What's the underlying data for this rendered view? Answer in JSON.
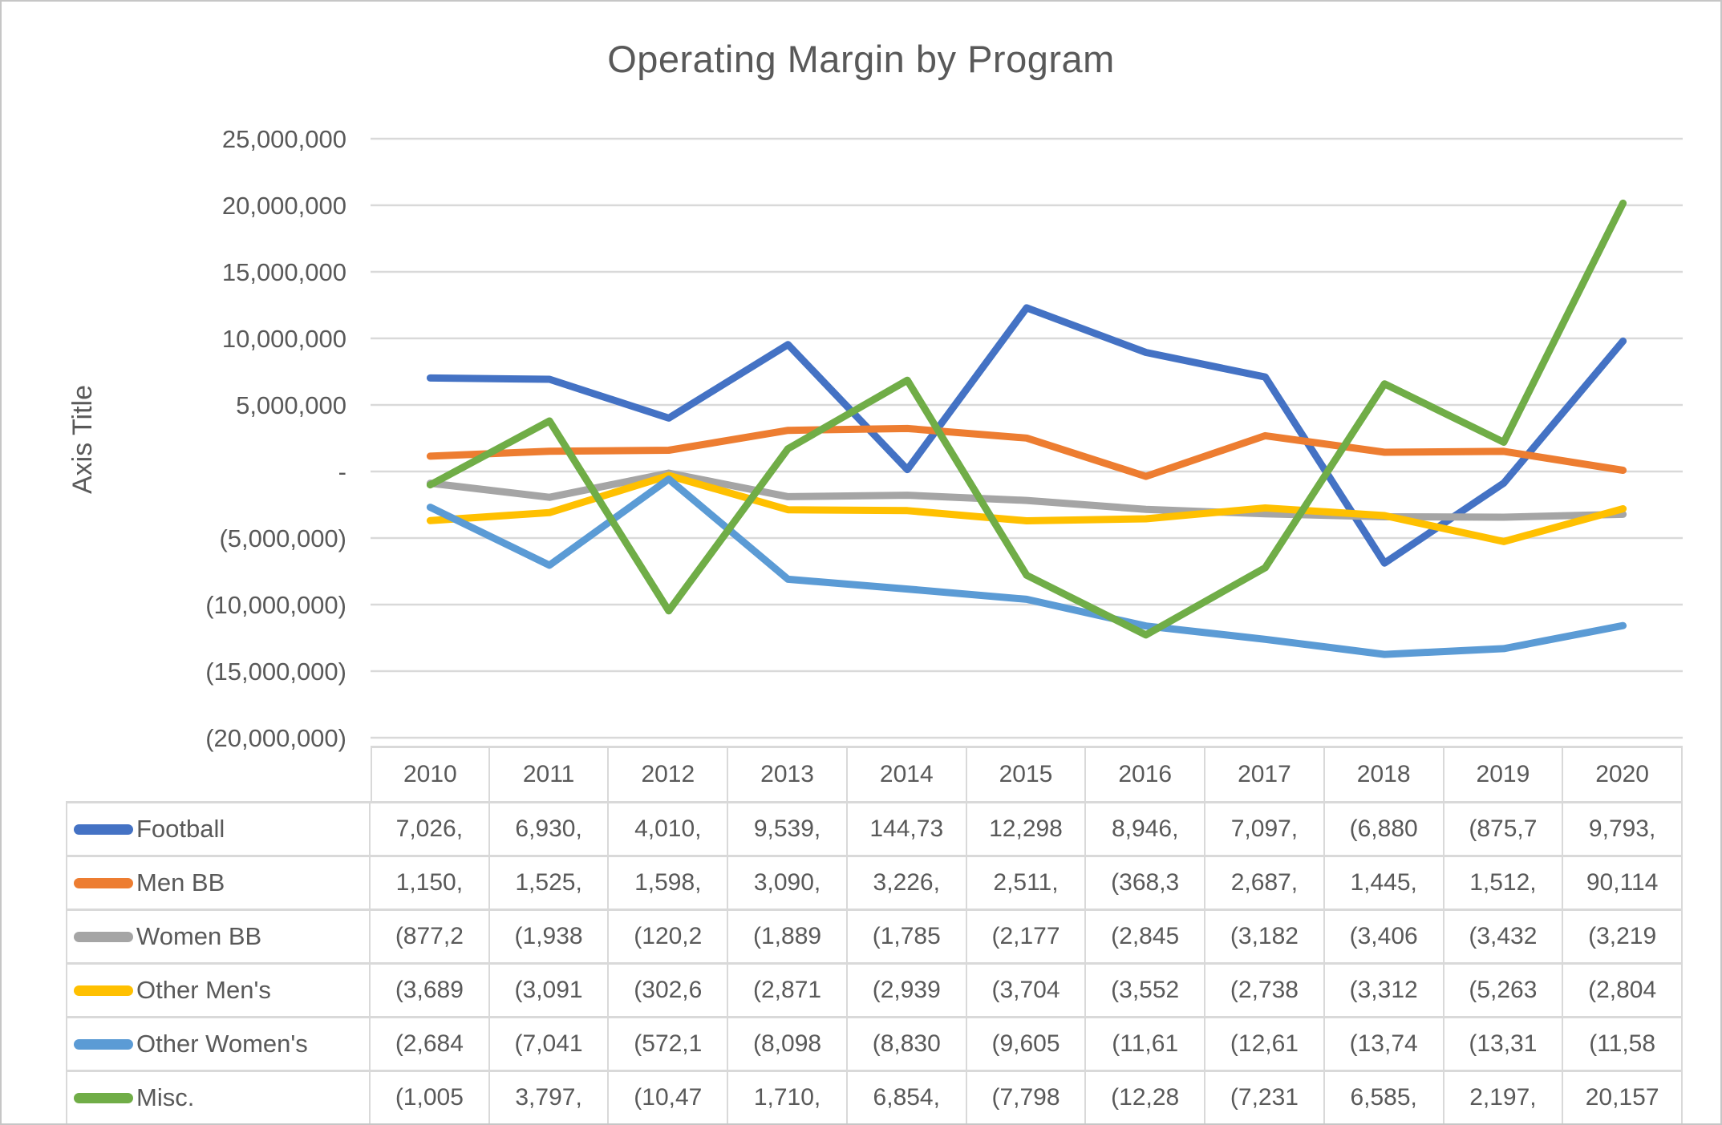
{
  "title": "Operating Margin by Program",
  "colors": {
    "text": "#595959",
    "gridline": "#d9d9d9",
    "table_border": "#d9d9d9",
    "football": "#4472C4",
    "men_bb": "#ED7D31",
    "women_bb": "#A5A5A5",
    "other_mens": "#FFC000",
    "other_womens": "#5B9BD5",
    "misc": "#70AD47"
  },
  "y_axis": {
    "title": "Axis Title",
    "ticks": [
      {
        "value": 25000000,
        "label": "25,000,000"
      },
      {
        "value": 20000000,
        "label": "20,000,000"
      },
      {
        "value": 15000000,
        "label": "15,000,000"
      },
      {
        "value": 10000000,
        "label": "10,000,000"
      },
      {
        "value": 5000000,
        "label": "5,000,000"
      },
      {
        "value": 0,
        "label": "-"
      },
      {
        "value": -5000000,
        "label": "(5,000,000)"
      },
      {
        "value": -10000000,
        "label": "(10,000,000)"
      },
      {
        "value": -15000000,
        "label": "(15,000,000)"
      },
      {
        "value": -20000000,
        "label": "(20,000,000)"
      }
    ]
  },
  "chart_data": {
    "type": "line",
    "title": "Operating Margin by Program",
    "xlabel": "",
    "ylabel": "Axis Title",
    "ylim": [
      -20000000,
      25000000
    ],
    "gridline_interval": 5000000,
    "grid": true,
    "legend_position": "data-table-left",
    "categories": [
      "2010",
      "2011",
      "2012",
      "2013",
      "2014",
      "2015",
      "2016",
      "2017",
      "2018",
      "2019",
      "2020"
    ],
    "series": [
      {
        "name": "Football",
        "color": "#4472C4",
        "values": [
          7026000,
          6930000,
          4010000,
          9539000,
          144730,
          12298000,
          8946000,
          7097000,
          -6880000,
          -875700,
          9793000
        ]
      },
      {
        "name": "Men BB",
        "color": "#ED7D31",
        "values": [
          1150000,
          1525000,
          1598000,
          3090000,
          3226000,
          2511000,
          -368300,
          2687000,
          1445000,
          1512000,
          90114
        ]
      },
      {
        "name": "Women BB",
        "color": "#A5A5A5",
        "values": [
          -877200,
          -1938000,
          -120200,
          -1889000,
          -1785000,
          -2177000,
          -2845000,
          -3182000,
          -3406000,
          -3432000,
          -3219000
        ]
      },
      {
        "name": "Other Men's",
        "color": "#FFC000",
        "values": [
          -3689000,
          -3091000,
          -302600,
          -2871000,
          -2939000,
          -3704000,
          -3552000,
          -2738000,
          -3312000,
          -5263000,
          -2804000
        ]
      },
      {
        "name": "Other Women's",
        "color": "#5B9BD5",
        "values": [
          -2684000,
          -7041000,
          -572100,
          -8098000,
          -8830000,
          -9605000,
          -11610000,
          -12610000,
          -13740000,
          -13310000,
          -11580000
        ]
      },
      {
        "name": "Misc.",
        "color": "#70AD47",
        "values": [
          -1005000,
          3797000,
          -10470000,
          1710000,
          6854000,
          -7798000,
          -12280000,
          -7231000,
          6585000,
          2197000,
          20157000
        ]
      }
    ]
  },
  "table": {
    "years": [
      "2010",
      "2011",
      "2012",
      "2013",
      "2014",
      "2015",
      "2016",
      "2017",
      "2018",
      "2019",
      "2020"
    ],
    "rows": [
      {
        "label": "Football",
        "color": "#4472C4",
        "cells": [
          "7,026,",
          "6,930,",
          "4,010,",
          "9,539,",
          "144,73",
          "12,298",
          "8,946,",
          "7,097,",
          "(6,880",
          "(875,7",
          "9,793,"
        ]
      },
      {
        "label": "Men BB",
        "color": "#ED7D31",
        "cells": [
          "1,150,",
          "1,525,",
          "1,598,",
          "3,090,",
          "3,226,",
          "2,511,",
          "(368,3",
          "2,687,",
          "1,445,",
          "1,512,",
          "90,114"
        ]
      },
      {
        "label": "Women BB",
        "color": "#A5A5A5",
        "cells": [
          "(877,2",
          "(1,938",
          "(120,2",
          "(1,889",
          "(1,785",
          "(2,177",
          "(2,845",
          "(3,182",
          "(3,406",
          "(3,432",
          "(3,219"
        ]
      },
      {
        "label": "Other Men's",
        "color": "#FFC000",
        "cells": [
          "(3,689",
          "(3,091",
          "(302,6",
          "(2,871",
          "(2,939",
          "(3,704",
          "(3,552",
          "(2,738",
          "(3,312",
          "(5,263",
          "(2,804"
        ]
      },
      {
        "label": "Other Women's",
        "color": "#5B9BD5",
        "cells": [
          "(2,684",
          "(7,041",
          "(572,1",
          "(8,098",
          "(8,830",
          "(9,605",
          "(11,61",
          "(12,61",
          "(13,74",
          "(13,31",
          "(11,58"
        ]
      },
      {
        "label": "Misc.",
        "color": "#70AD47",
        "cells": [
          "(1,005",
          "3,797,",
          "(10,47",
          "1,710,",
          "6,854,",
          "(7,798",
          "(12,28",
          "(7,231",
          "6,585,",
          "2,197,",
          "20,157"
        ]
      }
    ]
  }
}
